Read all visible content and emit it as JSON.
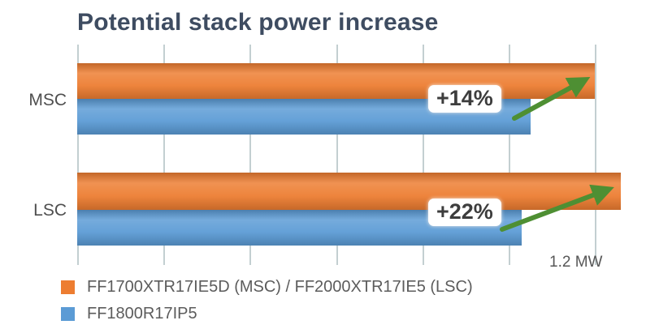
{
  "title": "Potential stack power increase",
  "colors": {
    "title": "#3e4c61",
    "gridline": "#c3cfd1",
    "arrow_green": "#4e8f33",
    "badge_text": "#3d3d3d",
    "label_gray": "#575757"
  },
  "chart_data": {
    "type": "bar",
    "orientation": "horizontal",
    "title": "Potential stack power increase",
    "categories": [
      "MSC",
      "LSC"
    ],
    "series": [
      {
        "name": "FF1700XTR17IE5D (MSC) / FF2000XTR17IE5 (LSC)",
        "color": "#ED7D31",
        "values": [
          1.2,
          1.26
        ]
      },
      {
        "name": "FF1800R17IP5",
        "color": "#5B9BD5",
        "values": [
          1.05,
          1.03
        ]
      }
    ],
    "annotations": [
      {
        "category": "MSC",
        "label": "+14%"
      },
      {
        "category": "LSC",
        "label": "+22%"
      }
    ],
    "xlim": [
      0,
      1.3
    ],
    "xticks": [
      0,
      0.2,
      0.4,
      0.6,
      0.8,
      1.0,
      1.2
    ],
    "axis_unit": "MW",
    "axis_max_label": "1.2 MW",
    "grid": true,
    "legend_position": "bottom-left"
  }
}
